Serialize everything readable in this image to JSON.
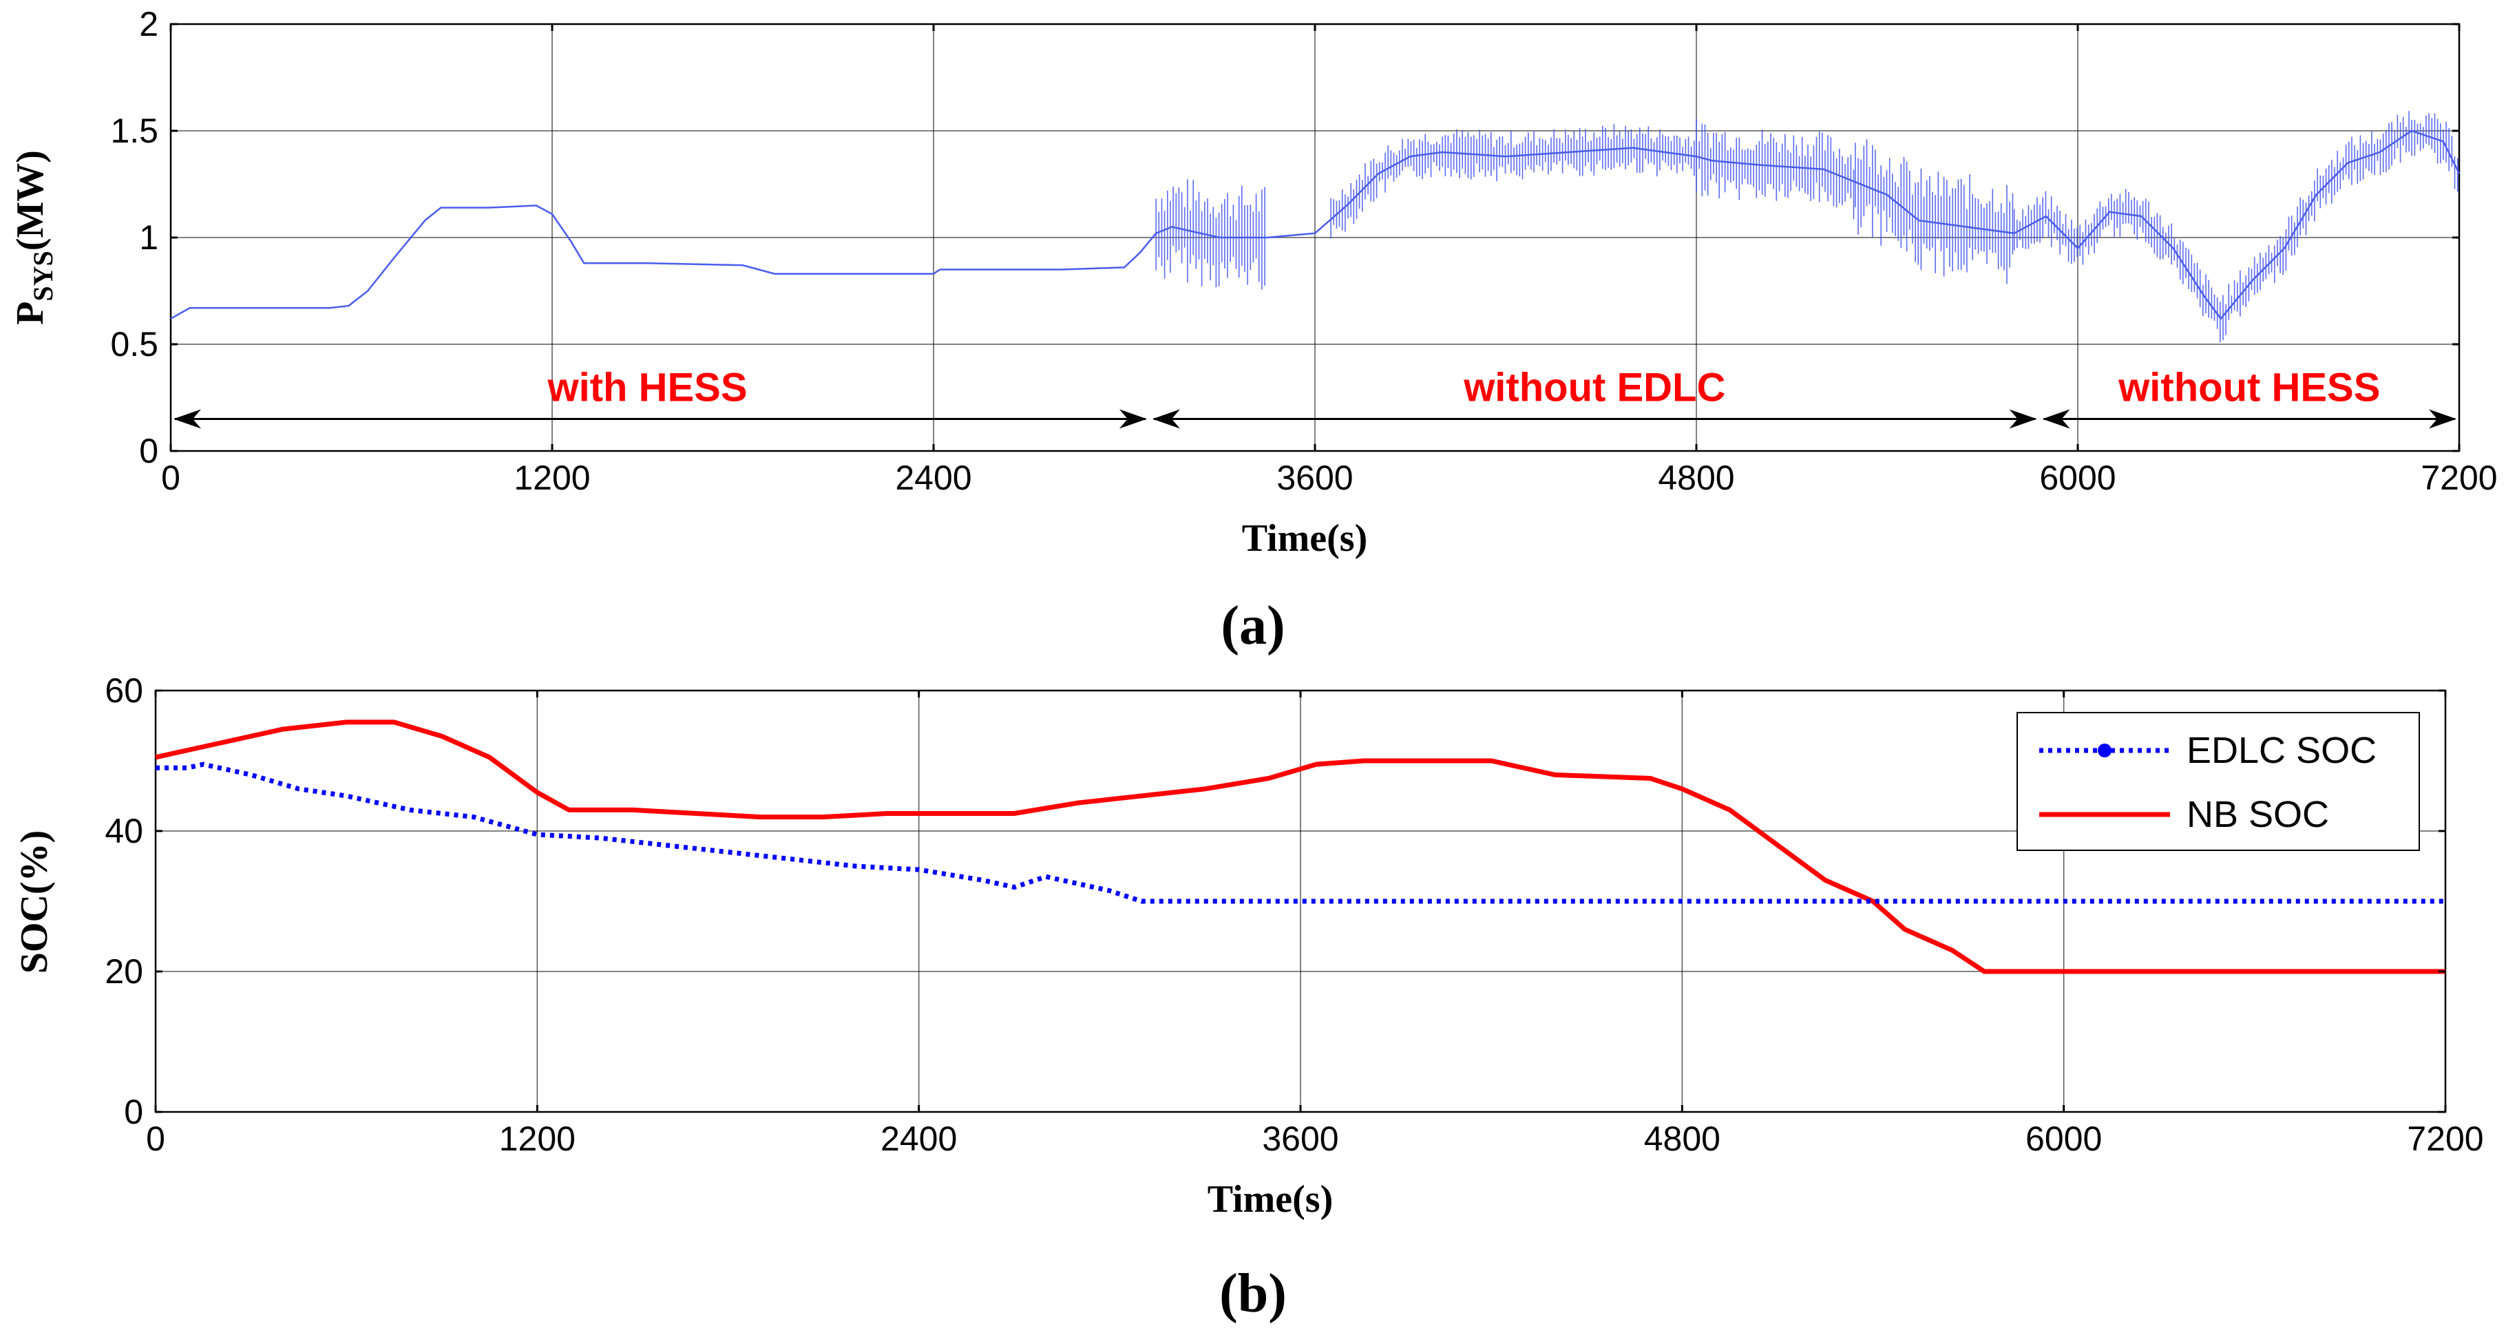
{
  "chart_data": [
    {
      "type": "line",
      "panel_label": "a",
      "title": "",
      "xlabel": "Time(s)",
      "ylabel_main": "P",
      "ylabel_sub": "SYS",
      "ylabel_unit": "(MW)",
      "xlim": [
        0,
        7200
      ],
      "ylim": [
        0,
        2
      ],
      "xticks": [
        "0",
        "1200",
        "2400",
        "3600",
        "4800",
        "6000",
        "7200"
      ],
      "yticks": [
        "0",
        "0.5",
        "1",
        "1.5",
        "2"
      ],
      "grid": true,
      "series": [
        {
          "name": "P_SYS",
          "color": "#4a5cf0",
          "points": [
            [
              0,
              0.62
            ],
            [
              60,
              0.67
            ],
            [
              400,
              0.67
            ],
            [
              500,
              0.67
            ],
            [
              560,
              0.68
            ],
            [
              620,
              0.75
            ],
            [
              700,
              0.9
            ],
            [
              800,
              1.08
            ],
            [
              850,
              1.14
            ],
            [
              1000,
              1.14
            ],
            [
              1150,
              1.15
            ],
            [
              1200,
              1.11
            ],
            [
              1260,
              0.98
            ],
            [
              1300,
              0.88
            ],
            [
              1500,
              0.88
            ],
            [
              1800,
              0.87
            ],
            [
              1850,
              0.85
            ],
            [
              1900,
              0.83
            ],
            [
              2400,
              0.83
            ],
            [
              2420,
              0.85
            ],
            [
              2800,
              0.85
            ],
            [
              3000,
              0.86
            ],
            [
              3050,
              0.93
            ],
            [
              3100,
              1.02
            ],
            [
              3150,
              1.05
            ],
            [
              3300,
              1.0
            ],
            [
              3450,
              1.0
            ],
            [
              3600,
              1.02
            ],
            [
              3700,
              1.15
            ],
            [
              3800,
              1.3
            ],
            [
              3900,
              1.38
            ],
            [
              4000,
              1.4
            ],
            [
              4200,
              1.38
            ],
            [
              4400,
              1.4
            ],
            [
              4600,
              1.42
            ],
            [
              4800,
              1.38
            ],
            [
              4850,
              1.36
            ],
            [
              5000,
              1.34
            ],
            [
              5200,
              1.32
            ],
            [
              5400,
              1.2
            ],
            [
              5500,
              1.08
            ],
            [
              5650,
              1.05
            ],
            [
              5800,
              1.02
            ],
            [
              5900,
              1.1
            ],
            [
              6000,
              0.95
            ],
            [
              6100,
              1.12
            ],
            [
              6200,
              1.1
            ],
            [
              6300,
              0.95
            ],
            [
              6400,
              0.72
            ],
            [
              6450,
              0.62
            ],
            [
              6550,
              0.8
            ],
            [
              6650,
              0.95
            ],
            [
              6750,
              1.2
            ],
            [
              6850,
              1.35
            ],
            [
              6950,
              1.4
            ],
            [
              7050,
              1.5
            ],
            [
              7150,
              1.45
            ],
            [
              7200,
              1.3
            ]
          ],
          "noisy_segments": [
            {
              "from": 3100,
              "to": 3450,
              "amplitude": 0.25
            },
            {
              "from": 3650,
              "to": 4800,
              "amplitude": 0.12
            },
            {
              "from": 4800,
              "to": 5300,
              "amplitude": 0.18
            },
            {
              "from": 5300,
              "to": 5800,
              "amplitude": 0.25
            },
            {
              "from": 5800,
              "to": 7200,
              "amplitude": 0.12
            }
          ]
        }
      ],
      "annotations": [
        {
          "text": "with HESS",
          "from": 0,
          "to": 3080,
          "label_x": 1500
        },
        {
          "text": "without EDLC",
          "from": 3080,
          "to": 5880,
          "label_x": 4480
        },
        {
          "text": "without HESS",
          "from": 5880,
          "to": 7200,
          "label_x": 6540
        }
      ]
    },
    {
      "type": "line",
      "panel_label": "b",
      "title": "",
      "xlabel": "Time(s)",
      "ylabel": "SOC(%)",
      "xlim": [
        0,
        7200
      ],
      "ylim": [
        0,
        60
      ],
      "xticks": [
        "0",
        "1200",
        "2400",
        "3600",
        "4800",
        "6000",
        "7200"
      ],
      "yticks": [
        "0",
        "20",
        "40",
        "60"
      ],
      "grid": true,
      "legend_position": "top-right",
      "series": [
        {
          "name": "EDLC SOC",
          "style": "dotted",
          "marker": "circle",
          "color": "#0000ff",
          "points": [
            [
              0,
              49
            ],
            [
              100,
              49
            ],
            [
              150,
              49.5
            ],
            [
              300,
              48
            ],
            [
              450,
              46
            ],
            [
              600,
              45
            ],
            [
              800,
              43
            ],
            [
              1000,
              42
            ],
            [
              1200,
              39.5
            ],
            [
              1400,
              39
            ],
            [
              1600,
              38
            ],
            [
              1800,
              37
            ],
            [
              2000,
              36
            ],
            [
              2200,
              35
            ],
            [
              2400,
              34.5
            ],
            [
              2600,
              33
            ],
            [
              2700,
              32
            ],
            [
              2800,
              33.5
            ],
            [
              2900,
              32.5
            ],
            [
              3000,
              31.5
            ],
            [
              3100,
              30
            ],
            [
              7200,
              30
            ]
          ]
        },
        {
          "name": "NB SOC",
          "style": "solid",
          "color": "#ff0000",
          "points": [
            [
              0,
              50.5
            ],
            [
              200,
              52.5
            ],
            [
              400,
              54.5
            ],
            [
              600,
              55.5
            ],
            [
              750,
              55.5
            ],
            [
              900,
              53.5
            ],
            [
              1050,
              50.5
            ],
            [
              1200,
              45.5
            ],
            [
              1300,
              43
            ],
            [
              1500,
              43
            ],
            [
              1700,
              42.5
            ],
            [
              1900,
              42
            ],
            [
              2100,
              42
            ],
            [
              2300,
              42.5
            ],
            [
              2500,
              42.5
            ],
            [
              2700,
              42.5
            ],
            [
              2900,
              44
            ],
            [
              3100,
              45
            ],
            [
              3300,
              46
            ],
            [
              3500,
              47.5
            ],
            [
              3650,
              49.5
            ],
            [
              3800,
              50
            ],
            [
              4200,
              50
            ],
            [
              4400,
              48
            ],
            [
              4700,
              47.5
            ],
            [
              4800,
              46
            ],
            [
              4950,
              43
            ],
            [
              5100,
              38
            ],
            [
              5250,
              33
            ],
            [
              5400,
              30
            ],
            [
              5500,
              26
            ],
            [
              5650,
              23
            ],
            [
              5750,
              20
            ],
            [
              7200,
              20
            ]
          ]
        }
      ]
    }
  ]
}
